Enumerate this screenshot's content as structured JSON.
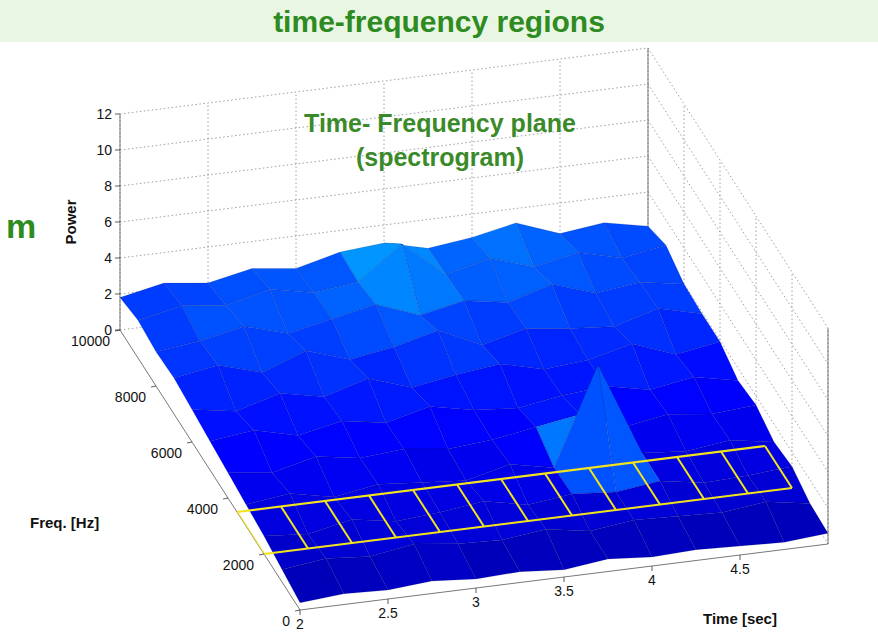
{
  "header": {
    "title": "time-frequency regions"
  },
  "side_label": "m",
  "chart_data": {
    "type": "surface",
    "title": "Time- Frequency plane (spectrogram)",
    "xlabel": "Time [sec]",
    "ylabel": "Freq. [Hz]",
    "zlabel": "Power",
    "x": [
      2,
      2.25,
      2.5,
      2.75,
      3,
      3.25,
      3.5,
      3.75,
      4,
      4.25,
      4.5,
      4.75,
      5
    ],
    "y": [
      0,
      1000,
      2000,
      3000,
      4000,
      5000,
      6000,
      7000,
      8000,
      9000,
      10000
    ],
    "values": [
      [
        0.4,
        0.6,
        0.5,
        0.7,
        0.5,
        0.6,
        0.4,
        0.7,
        0.5,
        0.6,
        0.5,
        0.4,
        0.6
      ],
      [
        0.7,
        1.0,
        0.8,
        1.2,
        0.9,
        0.8,
        1.1,
        0.7,
        1.0,
        0.9,
        0.8,
        1.1,
        0.7
      ],
      [
        1.0,
        0.8,
        1.3,
        0.9,
        1.1,
        1.4,
        0.9,
        1.2,
        1.0,
        1.3,
        0.9,
        1.0,
        1.2
      ],
      [
        1.2,
        1.5,
        1.0,
        1.4,
        1.2,
        1.0,
        1.6,
        1.1,
        6.5,
        1.3,
        1.1,
        1.4,
        1.0
      ],
      [
        1.4,
        1.1,
        1.7,
        1.3,
        1.5,
        1.2,
        1.4,
        1.8,
        2.2,
        1.2,
        1.6,
        1.3,
        1.5
      ],
      [
        1.6,
        1.9,
        1.3,
        1.8,
        1.4,
        2.0,
        1.5,
        1.3,
        1.7,
        1.9,
        1.4,
        1.8,
        1.3
      ],
      [
        1.8,
        1.4,
        2.1,
        1.6,
        2.3,
        1.5,
        1.9,
        2.2,
        1.6,
        1.8,
        2.4,
        1.5,
        1.9
      ],
      [
        2.0,
        2.4,
        1.7,
        2.6,
        1.8,
        2.2,
        2.8,
        1.7,
        2.3,
        2.0,
        1.8,
        2.5,
        1.9
      ],
      [
        1.9,
        2.2,
        2.7,
        2.0,
        2.5,
        3.0,
        2.1,
        2.6,
        2.2,
        2.9,
        2.1,
        2.4,
        2.0
      ],
      [
        2.1,
        2.6,
        2.3,
        2.9,
        2.4,
        2.7,
        4.5,
        2.5,
        3.1,
        2.3,
        2.8,
        2.2,
        2.6
      ],
      [
        1.8,
        2.3,
        2.0,
        2.5,
        2.2,
        2.8,
        3.0,
        2.4,
        2.7,
        3.2,
        2.3,
        2.6,
        2.1
      ]
    ],
    "xlim": [
      2,
      5
    ],
    "xticks": [
      2,
      2.5,
      3,
      3.5,
      4,
      4.5
    ],
    "ylim": [
      0,
      10000
    ],
    "yticks": [
      0,
      2000,
      4000,
      6000,
      8000,
      10000
    ],
    "zlim": [
      0,
      12
    ],
    "zticks": [
      0,
      2,
      4,
      6,
      8,
      10,
      12
    ],
    "color": "jet",
    "clim": [
      0,
      12
    ],
    "highlight_band": [
      2000,
      3500
    ],
    "grid": true
  }
}
